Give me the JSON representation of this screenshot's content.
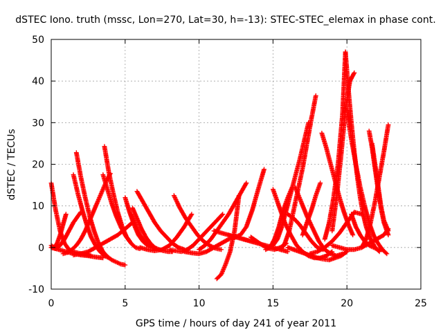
{
  "chart_data": {
    "type": "scatter",
    "title": "dSTEC Iono. truth (mssc, Lon=270, Lat=30, h=-13): STEC-STEC_elemax in phase cont.",
    "xlabel": "GPS time / hours of day 241 of year 2011",
    "ylabel": "dSTEC  / TECUs",
    "xlim": [
      0,
      25
    ],
    "ylim": [
      -10,
      50
    ],
    "xticks": [
      "0",
      "5",
      "10",
      "15",
      "20",
      "25"
    ],
    "yticks": [
      "-10",
      "0",
      "10",
      "20",
      "30",
      "40",
      "50"
    ],
    "grid": true,
    "legend": "none",
    "marker": "plus",
    "color": "#ff0000",
    "series": [
      {
        "x": [
          0.0,
          0.3,
          0.6,
          0.9,
          1.2,
          1.5,
          1.8,
          2.1,
          2.4,
          2.7
        ],
        "y": [
          15.5,
          9.0,
          4.0,
          1.0,
          -0.5,
          -1.0,
          -1.3,
          -1.5,
          -1.7,
          -2.0
        ]
      },
      {
        "x": [
          0.0,
          0.2,
          0.4,
          0.6,
          0.8,
          1.0
        ],
        "y": [
          0.5,
          0.0,
          1.0,
          3.0,
          5.5,
          8.0
        ]
      },
      {
        "x": [
          0.0,
          0.3,
          0.6,
          0.9,
          1.2,
          1.5,
          1.8,
          2.0
        ],
        "y": [
          0.0,
          -0.3,
          0.5,
          2.0,
          4.0,
          6.0,
          7.5,
          8.5
        ]
      },
      {
        "x": [
          0.0,
          0.5,
          1.0,
          1.5,
          2.0,
          2.5,
          3.0,
          3.5
        ],
        "y": [
          0.0,
          -0.5,
          -1.0,
          -1.5,
          -1.8,
          -2.0,
          -2.3,
          -2.5
        ]
      },
      {
        "x": [
          1.5,
          1.8,
          2.1,
          2.4,
          2.7,
          3.0,
          3.3,
          3.6,
          3.9
        ],
        "y": [
          17.5,
          13.0,
          9.0,
          5.5,
          2.5,
          0.5,
          -1.0,
          -2.0,
          -2.5
        ]
      },
      {
        "x": [
          1.7,
          2.0,
          2.3,
          2.6,
          2.9,
          3.2,
          3.5,
          3.8,
          4.1,
          4.4,
          4.7,
          5.0
        ],
        "y": [
          22.8,
          17.0,
          12.0,
          7.5,
          4.0,
          1.0,
          -1.0,
          -2.2,
          -3.0,
          -3.5,
          -4.0,
          -4.2
        ]
      },
      {
        "x": [
          0.8,
          1.1,
          1.4,
          1.7,
          2.0,
          2.3,
          2.6,
          2.9,
          3.2,
          3.5,
          3.8,
          4.0
        ],
        "y": [
          -1.5,
          -1.2,
          -0.5,
          0.5,
          2.0,
          4.0,
          6.5,
          9.0,
          11.5,
          14.0,
          16.5,
          17.8
        ]
      },
      {
        "x": [
          1.5,
          2.0,
          2.5,
          3.0,
          3.5,
          4.0,
          4.5,
          5.0,
          5.5
        ],
        "y": [
          -1.8,
          -1.5,
          -1.0,
          0.0,
          1.0,
          2.0,
          3.0,
          4.5,
          6.0
        ]
      },
      {
        "x": [
          3.6,
          3.9,
          4.2,
          4.5,
          4.8,
          5.1,
          5.4,
          5.7,
          6.0
        ],
        "y": [
          24.3,
          18.0,
          13.0,
          8.5,
          5.0,
          2.5,
          1.0,
          0.0,
          -0.3
        ]
      },
      {
        "x": [
          3.5,
          3.8,
          4.1,
          4.4,
          4.7,
          5.0,
          5.3
        ],
        "y": [
          17.5,
          14.0,
          10.5,
          7.5,
          5.0,
          3.0,
          1.5
        ]
      },
      {
        "x": [
          5.0,
          5.3,
          5.6,
          5.9,
          6.2,
          6.5,
          6.8,
          7.1
        ],
        "y": [
          12.0,
          8.5,
          5.5,
          3.0,
          1.5,
          0.5,
          0.0,
          -0.3
        ]
      },
      {
        "x": [
          5.8,
          6.2,
          6.6,
          7.0,
          7.4,
          7.8,
          8.2,
          8.6,
          9.0
        ],
        "y": [
          13.5,
          11.0,
          8.5,
          6.0,
          4.0,
          2.5,
          1.0,
          0.0,
          -0.5
        ]
      },
      {
        "x": [
          5.4,
          5.7,
          6.0,
          6.3,
          6.6
        ],
        "y": [
          8.0,
          5.5,
          3.0,
          1.5,
          0.5
        ]
      },
      {
        "x": [
          5.5,
          5.8,
          6.1,
          6.4,
          6.7,
          7.0,
          7.3,
          7.6,
          7.9,
          8.2
        ],
        "y": [
          9.5,
          7.0,
          4.5,
          2.5,
          1.0,
          0.0,
          -0.5,
          -0.8,
          -1.0,
          -1.0
        ]
      },
      {
        "x": [
          6.0,
          6.5,
          7.0,
          7.5,
          8.0,
          8.5,
          9.0,
          9.5
        ],
        "y": [
          0.0,
          -0.5,
          -0.8,
          -0.5,
          0.5,
          2.5,
          5.0,
          8.0
        ]
      },
      {
        "x": [
          8.3,
          8.7,
          9.1,
          9.5,
          9.9,
          10.3,
          10.7,
          11.1,
          11.5
        ],
        "y": [
          12.5,
          9.5,
          7.0,
          5.0,
          3.0,
          1.5,
          0.5,
          -0.2,
          -0.5
        ]
      },
      {
        "x": [
          8.0,
          8.4,
          8.8,
          9.2,
          9.6,
          10.0,
          10.4,
          10.8,
          11.2,
          11.6
        ],
        "y": [
          -0.5,
          -0.8,
          -1.0,
          -0.5,
          0.5,
          2.0,
          3.5,
          5.0,
          6.5,
          8.0
        ]
      },
      {
        "x": [
          9.0,
          9.5,
          10.0,
          10.5,
          11.0,
          11.5,
          12.0,
          12.5,
          13.0,
          13.5,
          14.0
        ],
        "y": [
          -1.0,
          -1.3,
          -1.5,
          -1.0,
          0.0,
          1.0,
          2.0,
          2.5,
          2.0,
          1.5,
          1.0
        ]
      },
      {
        "x": [
          10.0,
          10.4,
          10.8,
          11.2,
          11.6,
          12.0,
          12.4,
          12.8,
          13.2
        ],
        "y": [
          -0.5,
          0.5,
          2.0,
          4.0,
          6.0,
          8.0,
          10.5,
          13.0,
          15.5
        ]
      },
      {
        "x": [
          11.2,
          11.5,
          11.8,
          12.1,
          12.4,
          12.7
        ],
        "y": [
          -7.5,
          -6.5,
          -4.0,
          -1.0,
          4.0,
          12.5
        ]
      },
      {
        "x": [
          11.0,
          11.5,
          12.0,
          12.5,
          13.0,
          13.5,
          14.0,
          14.5,
          15.0,
          15.5,
          16.0
        ],
        "y": [
          4.0,
          3.5,
          3.0,
          2.5,
          2.0,
          1.5,
          1.0,
          0.5,
          0.0,
          -0.5,
          -1.0
        ]
      },
      {
        "x": [
          12.0,
          12.4,
          12.8,
          13.2,
          13.6,
          14.0,
          14.4
        ],
        "y": [
          3.0,
          2.5,
          3.0,
          5.0,
          9.0,
          14.0,
          18.8
        ]
      },
      {
        "x": [
          13.5,
          13.9,
          14.3,
          14.7,
          15.1,
          15.5,
          15.9
        ],
        "y": [
          2.5,
          1.5,
          0.5,
          -0.2,
          -0.5,
          0.0,
          1.0
        ]
      },
      {
        "x": [
          14.5,
          14.8,
          15.1,
          15.4,
          15.7,
          16.0,
          16.3
        ],
        "y": [
          -0.5,
          0.0,
          2.0,
          5.0,
          9.0,
          12.0,
          14.5
        ]
      },
      {
        "x": [
          15.0,
          15.3,
          15.6,
          15.9,
          16.2,
          16.5,
          16.8,
          17.1,
          17.4
        ],
        "y": [
          0.5,
          2.0,
          5.0,
          9.0,
          13.0,
          17.0,
          21.0,
          25.5,
          30.0
        ]
      },
      {
        "x": [
          15.5,
          15.8,
          16.1,
          16.4,
          16.7,
          17.0,
          17.3,
          17.6,
          17.9
        ],
        "y": [
          -0.5,
          1.0,
          4.0,
          9.0,
          14.0,
          19.0,
          25.0,
          31.0,
          36.5
        ]
      },
      {
        "x": [
          15.0,
          15.4,
          15.8,
          16.2,
          16.6,
          17.0,
          17.4,
          17.8,
          18.2,
          18.6,
          19.0
        ],
        "y": [
          14.0,
          10.0,
          6.0,
          3.0,
          0.5,
          -1.0,
          -2.0,
          -2.5,
          -2.5,
          -2.0,
          -1.0
        ]
      },
      {
        "x": [
          16.0,
          16.4,
          16.8,
          17.2,
          17.6,
          18.0,
          18.4
        ],
        "y": [
          8.0,
          7.0,
          5.5,
          3.5,
          1.5,
          0.0,
          -0.5
        ]
      },
      {
        "x": [
          16.5,
          16.9,
          17.3,
          17.7,
          18.1,
          18.5,
          18.9,
          19.3,
          19.7
        ],
        "y": [
          14.5,
          11.0,
          7.5,
          4.5,
          1.5,
          -0.5,
          -1.5,
          -2.0,
          -1.5
        ]
      },
      {
        "x": [
          16.0,
          16.4,
          16.8,
          17.2,
          17.6,
          18.0,
          18.4,
          18.8,
          19.2,
          19.6,
          20.0
        ],
        "y": [
          0.0,
          -0.5,
          -1.0,
          -1.5,
          -2.0,
          -2.5,
          -2.8,
          -3.0,
          -2.5,
          -2.0,
          -1.0
        ]
      },
      {
        "x": [
          17.0,
          17.3,
          17.6,
          17.9,
          18.2
        ],
        "y": [
          3.0,
          6.0,
          9.0,
          12.5,
          15.5
        ]
      },
      {
        "x": [
          18.3,
          18.6,
          18.9,
          19.2,
          19.5,
          19.8,
          20.1,
          20.4
        ],
        "y": [
          27.5,
          24.0,
          20.0,
          16.0,
          12.0,
          8.5,
          5.5,
          3.0
        ]
      },
      {
        "x": [
          18.5,
          18.8,
          19.1,
          19.4,
          19.7,
          19.9
        ],
        "y": [
          2.0,
          6.0,
          12.0,
          20.0,
          32.0,
          47.0
        ]
      },
      {
        "x": [
          19.9,
          20.1,
          20.3,
          20.5,
          20.7,
          20.9,
          21.1,
          21.3,
          21.6,
          21.9,
          22.2
        ],
        "y": [
          47.0,
          38.0,
          30.0,
          23.0,
          17.0,
          12.0,
          8.0,
          5.0,
          2.0,
          0.0,
          -1.0
        ]
      },
      {
        "x": [
          19.0,
          19.3,
          19.6,
          19.9,
          20.2,
          20.5
        ],
        "y": [
          4.0,
          12.0,
          22.0,
          33.0,
          40.0,
          42.0
        ]
      },
      {
        "x": [
          20.0,
          20.3,
          20.6,
          20.9,
          21.2,
          21.5,
          21.8,
          22.1,
          22.4,
          22.7
        ],
        "y": [
          33.0,
          26.0,
          20.0,
          14.5,
          10.0,
          6.0,
          3.0,
          1.0,
          -0.5,
          -1.5
        ]
      },
      {
        "x": [
          20.3,
          20.6,
          20.9,
          21.2,
          21.5,
          21.8,
          22.1,
          22.4
        ],
        "y": [
          8.0,
          5.0,
          3.0,
          1.5,
          0.5,
          0.0,
          -0.5,
          -0.5
        ]
      },
      {
        "x": [
          21.5,
          21.7,
          21.9,
          22.1,
          22.3,
          22.5,
          22.8
        ],
        "y": [
          28.0,
          24.0,
          19.0,
          14.0,
          9.5,
          6.0,
          3.0
        ]
      },
      {
        "x": [
          21.7,
          21.9,
          22.1,
          22.3,
          22.5,
          22.8
        ],
        "y": [
          25.0,
          20.0,
          15.0,
          10.0,
          6.5,
          4.0
        ]
      },
      {
        "x": [
          21.0,
          21.3,
          21.6,
          21.9,
          22.2,
          22.5,
          22.8
        ],
        "y": [
          0.0,
          2.0,
          6.0,
          11.0,
          17.0,
          23.0,
          29.5
        ]
      },
      {
        "x": [
          19.0,
          19.5,
          20.0,
          20.5,
          21.0,
          21.5,
          22.0,
          22.5,
          22.8
        ],
        "y": [
          0.5,
          0.0,
          -0.5,
          -0.5,
          0.0,
          1.0,
          2.0,
          3.0,
          4.5
        ]
      },
      {
        "x": [
          17.5,
          18.0,
          18.5,
          19.0,
          19.5,
          20.0,
          20.5,
          21.0
        ],
        "y": [
          -1.5,
          -1.0,
          0.0,
          1.5,
          3.5,
          6.0,
          8.5,
          8.0
        ]
      }
    ]
  }
}
